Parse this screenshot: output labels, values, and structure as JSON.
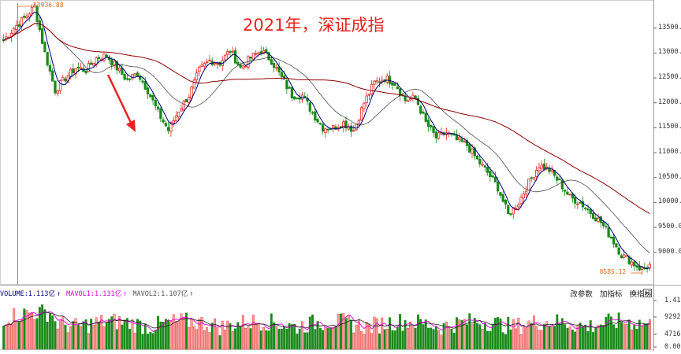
{
  "title": "2021年，深证成指",
  "chart_data": {
    "type": "candlestick",
    "series_name": "深证成指",
    "y_ticks": [
      "13500.00",
      "13000.00",
      "12500.00",
      "12000.00",
      "11500.00",
      "11000.00",
      "10500.00",
      "10000.00",
      "9500.00",
      "9000.00"
    ],
    "ylim": [
      8380,
      14000
    ],
    "high_label": "13936.88",
    "low_label": "8585.12",
    "price_path": [
      [
        0,
        13250
      ],
      [
        4,
        13500
      ],
      [
        8,
        13700
      ],
      [
        12,
        13930
      ],
      [
        16,
        13000
      ],
      [
        20,
        12250
      ],
      [
        24,
        12500
      ],
      [
        28,
        12700
      ],
      [
        32,
        12650
      ],
      [
        36,
        12900
      ],
      [
        40,
        12950
      ],
      [
        44,
        12700
      ],
      [
        48,
        12450
      ],
      [
        52,
        12600
      ],
      [
        56,
        12250
      ],
      [
        60,
        11800
      ],
      [
        64,
        11450
      ],
      [
        68,
        11850
      ],
      [
        72,
        12150
      ],
      [
        76,
        12650
      ],
      [
        80,
        12850
      ],
      [
        84,
        12800
      ],
      [
        88,
        13050
      ],
      [
        92,
        12700
      ],
      [
        96,
        12900
      ],
      [
        100,
        13050
      ],
      [
        104,
        12850
      ],
      [
        108,
        12500
      ],
      [
        112,
        12150
      ],
      [
        116,
        12150
      ],
      [
        120,
        11800
      ],
      [
        124,
        11500
      ],
      [
        128,
        11500
      ],
      [
        132,
        11600
      ],
      [
        136,
        11450
      ],
      [
        140,
        12000
      ],
      [
        144,
        12400
      ],
      [
        148,
        12500
      ],
      [
        152,
        12400
      ],
      [
        156,
        12050
      ],
      [
        160,
        12100
      ],
      [
        164,
        11600
      ],
      [
        168,
        11300
      ],
      [
        172,
        11400
      ],
      [
        176,
        11250
      ],
      [
        180,
        11150
      ],
      [
        184,
        10850
      ],
      [
        188,
        10600
      ],
      [
        192,
        10300
      ],
      [
        196,
        9750
      ],
      [
        200,
        10000
      ],
      [
        204,
        10400
      ],
      [
        208,
        10750
      ],
      [
        212,
        10650
      ],
      [
        216,
        10400
      ],
      [
        220,
        10100
      ],
      [
        224,
        10000
      ],
      [
        228,
        9800
      ],
      [
        232,
        9600
      ],
      [
        236,
        9300
      ],
      [
        240,
        8950
      ],
      [
        244,
        8800
      ],
      [
        248,
        8650
      ],
      [
        251,
        8740
      ]
    ],
    "volume": {
      "axis_labels": [
        "1.41",
        "9292.08",
        "4716.38",
        "0.00"
      ],
      "indicator_label": "VOLUME:1.113亿",
      "ma1_label": "MAVOL1:1.131亿",
      "ma2_label": "MAVOL2:1.107亿"
    },
    "colors": {
      "up": "#e8231f",
      "down": "#1a8a1a",
      "ma5": "#000080",
      "ma10": "#000000",
      "ma20": "#8b0000",
      "volma1": "#e000e0",
      "volma2": "#222222",
      "annotation_arrow": "#e8231f"
    }
  },
  "toolbar": {
    "params": "改参数",
    "add": "加指标",
    "swap": "换指标",
    "close": "×"
  }
}
